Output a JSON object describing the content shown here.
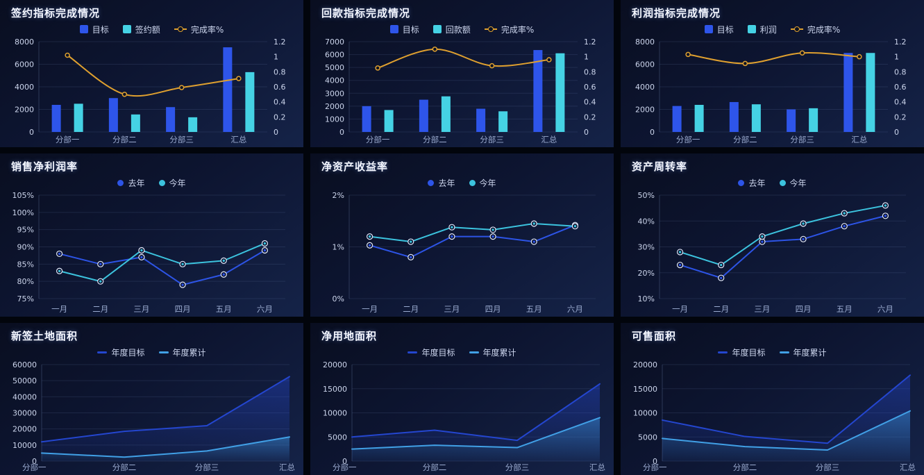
{
  "colors": {
    "background": "#02050c",
    "panel_gradient_start": "#090e20",
    "panel_gradient_end": "#152348",
    "title_text": "#f4f7ff",
    "legend_text": "#cdd6ee",
    "axis_tick_text": "#ccd5ec",
    "category_text": "#9aaacf",
    "grid_line": "rgba(120,142,190,0.16)",
    "axis_line": "rgba(120,142,190,0.30)",
    "bar_blue": "#2e55ea",
    "bar_cyan": "#45d2e4",
    "line_orange": "#dfa02f",
    "line_last_year_blue": "#2d54e6",
    "line_this_year_cyan": "#3cc3de",
    "area_target_blue": "#2446cf",
    "area_total_lightblue": "#41a0e6",
    "marker_ring": "#e2e9fb"
  },
  "chart_data": [
    {
      "title": "签约指标完成情况",
      "type": "bar-line",
      "categories": [
        "分部一",
        "分部二",
        "分部三",
        "汇总"
      ],
      "left_axis": {
        "min": 0,
        "max": 8000,
        "ticks": [
          "0",
          "2000",
          "4000",
          "6000",
          "8000"
        ]
      },
      "right_axis": {
        "min": 0,
        "max": 1.2,
        "ticks": [
          "0",
          "0.2",
          "0.4",
          "0.6",
          "0.8",
          "1",
          "1.2"
        ]
      },
      "series": [
        {
          "name": "目标",
          "kind": "bar",
          "color": "#2e55ea",
          "values": [
            2400,
            3000,
            2200,
            7500
          ]
        },
        {
          "name": "签约额",
          "kind": "bar",
          "color": "#45d2e4",
          "values": [
            2500,
            1550,
            1300,
            5300
          ]
        },
        {
          "name": "完成率%",
          "kind": "line",
          "axis": "right",
          "smooth": true,
          "marker": "dot",
          "color": "#dfa02f",
          "values": [
            1.02,
            0.5,
            0.59,
            0.71
          ]
        }
      ]
    },
    {
      "title": "回款指标完成情况",
      "type": "bar-line",
      "categories": [
        "分部一",
        "分部二",
        "分部三",
        "汇总"
      ],
      "left_axis": {
        "min": 0,
        "max": 7000,
        "ticks": [
          "0",
          "1000",
          "2000",
          "3000",
          "4000",
          "5000",
          "6000",
          "7000"
        ]
      },
      "right_axis": {
        "min": 0,
        "max": 1.2,
        "ticks": [
          "0",
          "0.2",
          "0.4",
          "0.6",
          "0.8",
          "1",
          "1.2"
        ]
      },
      "series": [
        {
          "name": "目标",
          "kind": "bar",
          "color": "#2e55ea",
          "values": [
            2000,
            2500,
            1800,
            6350
          ]
        },
        {
          "name": "回款额",
          "kind": "bar",
          "color": "#45d2e4",
          "values": [
            1700,
            2760,
            1600,
            6100
          ]
        },
        {
          "name": "完成率%",
          "kind": "line",
          "axis": "right",
          "smooth": true,
          "marker": "dot",
          "color": "#dfa02f",
          "values": [
            0.85,
            1.1,
            0.88,
            0.96
          ]
        }
      ]
    },
    {
      "title": "利润指标完成情况",
      "type": "bar-line",
      "categories": [
        "分部一",
        "分部二",
        "分部三",
        "汇总"
      ],
      "left_axis": {
        "min": 0,
        "max": 8000,
        "ticks": [
          "0",
          "2000",
          "4000",
          "6000",
          "8000"
        ]
      },
      "right_axis": {
        "min": 0,
        "max": 1.2,
        "ticks": [
          "0",
          "0.2",
          "0.4",
          "0.6",
          "0.8",
          "1",
          "1.2"
        ]
      },
      "series": [
        {
          "name": "目标",
          "kind": "bar",
          "color": "#2e55ea",
          "values": [
            2300,
            2650,
            2000,
            7000
          ]
        },
        {
          "name": "利润",
          "kind": "bar",
          "color": "#45d2e4",
          "values": [
            2400,
            2450,
            2100,
            7000
          ]
        },
        {
          "name": "完成率%",
          "kind": "line",
          "axis": "right",
          "smooth": true,
          "marker": "dot",
          "color": "#dfa02f",
          "values": [
            1.03,
            0.91,
            1.05,
            1.0
          ]
        }
      ]
    },
    {
      "title": "销售净利润率",
      "type": "line",
      "categories": [
        "一月",
        "二月",
        "三月",
        "四月",
        "五月",
        "六月"
      ],
      "left_axis": {
        "min": 75,
        "max": 105,
        "ticks": [
          "75%",
          "80%",
          "85%",
          "90%",
          "95%",
          "100%",
          "105%"
        ]
      },
      "series": [
        {
          "name": "去年",
          "kind": "line",
          "marker": "ring",
          "color": "#2d54e6",
          "values": [
            88,
            85,
            87,
            79,
            82,
            89
          ]
        },
        {
          "name": "今年",
          "kind": "line",
          "marker": "ring",
          "color": "#3cc3de",
          "values": [
            83,
            80,
            89,
            85,
            86,
            91
          ]
        }
      ]
    },
    {
      "title": "净资产收益率",
      "type": "line",
      "categories": [
        "一月",
        "二月",
        "三月",
        "四月",
        "五月",
        "六月"
      ],
      "left_axis": {
        "min": 0,
        "max": 2,
        "ticks": [
          "0%",
          "1%",
          "2%"
        ]
      },
      "series": [
        {
          "name": "去年",
          "kind": "line",
          "marker": "ring",
          "color": "#2d54e6",
          "values": [
            1.03,
            0.8,
            1.2,
            1.2,
            1.1,
            1.42
          ]
        },
        {
          "name": "今年",
          "kind": "line",
          "marker": "ring",
          "color": "#3cc3de",
          "values": [
            1.2,
            1.1,
            1.38,
            1.33,
            1.45,
            1.4
          ]
        }
      ]
    },
    {
      "title": "资产周转率",
      "type": "line",
      "categories": [
        "一月",
        "二月",
        "三月",
        "四月",
        "五月",
        "六月"
      ],
      "left_axis": {
        "min": 10,
        "max": 50,
        "ticks": [
          "10%",
          "20%",
          "30%",
          "40%",
          "50%"
        ]
      },
      "series": [
        {
          "name": "去年",
          "kind": "line",
          "marker": "ring",
          "color": "#2d54e6",
          "values": [
            23,
            18,
            32,
            33,
            38,
            42
          ]
        },
        {
          "name": "今年",
          "kind": "line",
          "marker": "ring",
          "color": "#3cc3de",
          "values": [
            28,
            23,
            34,
            39,
            43,
            46
          ]
        }
      ]
    },
    {
      "title": "新签土地面积",
      "type": "area",
      "categories": [
        "分部一",
        "分部二",
        "分部三",
        "汇总"
      ],
      "left_axis": {
        "min": 0,
        "max": 60000,
        "ticks": [
          "0",
          "10000",
          "20000",
          "30000",
          "40000",
          "50000",
          "60000"
        ]
      },
      "series": [
        {
          "name": "年度目标",
          "kind": "line",
          "fill": true,
          "marker": "none",
          "color": "#2446cf",
          "values": [
            12000,
            18500,
            22000,
            52500
          ]
        },
        {
          "name": "年度累计",
          "kind": "line",
          "fill": true,
          "marker": "none",
          "color": "#41a0e6",
          "values": [
            5000,
            2500,
            6300,
            15000
          ]
        }
      ]
    },
    {
      "title": "净用地面积",
      "type": "area",
      "categories": [
        "分部一",
        "分部二",
        "分部三",
        "汇总"
      ],
      "left_axis": {
        "min": 0,
        "max": 20000,
        "ticks": [
          "0",
          "5000",
          "10000",
          "15000",
          "20000"
        ]
      },
      "series": [
        {
          "name": "年度目标",
          "kind": "line",
          "fill": true,
          "marker": "none",
          "color": "#2446cf",
          "values": [
            5000,
            6400,
            4300,
            16000
          ]
        },
        {
          "name": "年度累计",
          "kind": "line",
          "fill": true,
          "marker": "none",
          "color": "#41a0e6",
          "values": [
            2500,
            3300,
            2800,
            9000
          ]
        }
      ]
    },
    {
      "title": "可售面积",
      "type": "area",
      "categories": [
        "分部一",
        "分部二",
        "分部三",
        "汇总"
      ],
      "left_axis": {
        "min": 0,
        "max": 20000,
        "ticks": [
          "0",
          "5000",
          "10000",
          "15000",
          "20000"
        ]
      },
      "series": [
        {
          "name": "年度目标",
          "kind": "line",
          "fill": true,
          "marker": "none",
          "color": "#2446cf",
          "values": [
            8500,
            5100,
            3700,
            17800
          ]
        },
        {
          "name": "年度累计",
          "kind": "line",
          "fill": true,
          "marker": "none",
          "color": "#41a0e6",
          "values": [
            4700,
            3000,
            2300,
            10400
          ]
        }
      ]
    }
  ]
}
